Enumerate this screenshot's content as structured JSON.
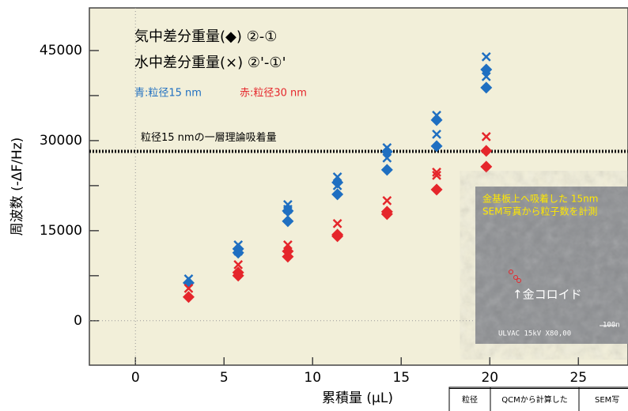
{
  "chart_data": {
    "type": "scatter",
    "x_label": "累積量 (μL)",
    "y_label": "周波数 (-ΔF/Hz)",
    "xlim": [
      -2.6,
      27.8
    ],
    "ylim": [
      -7400,
      52100
    ],
    "xticks": [
      0,
      5,
      10,
      15,
      20,
      25
    ],
    "yticks": [
      0,
      15000,
      30000,
      45000
    ],
    "yminorticks": [
      7500,
      22500,
      37500
    ],
    "zero_lines": true,
    "annotations": [
      "気中差分重量(◆) ②-①",
      "水中差分重量(×) ②'-①'"
    ],
    "color_notes": [
      {
        "text": "青:粒径15 nm",
        "color": "#1f6fc1"
      },
      {
        "text": "赤:粒径30 nm",
        "color": "#e5262b"
      }
    ],
    "reference_line": {
      "value": 28200,
      "label": "粒径15 nmの一層理論吸着量"
    },
    "series": [
      {
        "marker": "diamond",
        "color": "#1f6fc1",
        "x": [
          3,
          5.8,
          5.8,
          8.6,
          8.6,
          11.4,
          11.4,
          14.2,
          14.2,
          17,
          17,
          19.8,
          19.8
        ],
        "values": [
          6300,
          11970,
          11320,
          18290,
          16580,
          23030,
          21050,
          28160,
          25130,
          33420,
          29080,
          41840,
          38820
        ]
      },
      {
        "marker": "cross",
        "color": "#1f6fc1",
        "x": [
          3,
          5.8,
          5.8,
          8.6,
          8.6,
          11.4,
          11.4,
          14.2,
          14.2,
          17,
          17,
          19.8,
          19.8
        ],
        "values": [
          6970,
          12630,
          11580,
          19340,
          18550,
          23950,
          22500,
          28820,
          27110,
          34210,
          31050,
          43950,
          40660
        ]
      },
      {
        "marker": "diamond",
        "color": "#e5262b",
        "x": [
          3,
          5.8,
          5.8,
          8.6,
          8.6,
          11.4,
          11.4,
          14.2,
          14.2,
          17,
          19.8,
          19.8
        ],
        "values": [
          3950,
          8030,
          7500,
          11580,
          10660,
          14340,
          14080,
          18160,
          17760,
          21840,
          28290,
          25660
        ]
      },
      {
        "marker": "cross",
        "color": "#e5262b",
        "x": [
          3,
          5.8,
          8.6,
          11.4,
          14.2,
          17,
          17,
          19.8
        ],
        "values": [
          5390,
          9340,
          12630,
          16180,
          20000,
          24740,
          24210,
          30660
        ]
      }
    ]
  },
  "inset": {
    "caption": [
      "金基板上へ吸着した 15nm",
      "SEM写真から粒子数を計測"
    ],
    "pointer": "↑金コロイド",
    "footer": "ULVAC   15kV   X80,00",
    "scale": "100n"
  },
  "table": {
    "headers": [
      "粒径",
      "QCMから計算した",
      "SEM写"
    ]
  }
}
